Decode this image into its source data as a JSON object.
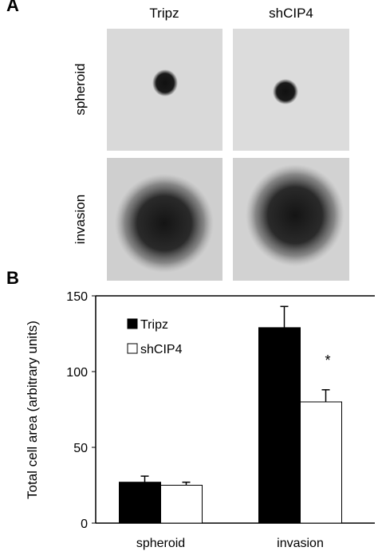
{
  "panel_a": {
    "label": "A",
    "columns": [
      "Tripz",
      "shCIP4"
    ],
    "rows": [
      "spheroid",
      "invasion"
    ]
  },
  "panel_b": {
    "label": "B"
  },
  "chart_data": {
    "type": "bar",
    "ylabel": "Total cell area (arbitrary units)",
    "categories": [
      "spheroid",
      "invasion"
    ],
    "series": [
      {
        "name": "Tripz",
        "color": "#000000",
        "values": [
          27,
          129
        ],
        "errors": [
          4,
          14
        ]
      },
      {
        "name": "shCIP4",
        "color": "#ffffff",
        "values": [
          25,
          80
        ],
        "errors": [
          2,
          8
        ]
      }
    ],
    "ylim": [
      0,
      150
    ],
    "yticks": [
      0,
      50,
      100,
      150
    ],
    "legend": "upper left",
    "annotation": "*"
  }
}
